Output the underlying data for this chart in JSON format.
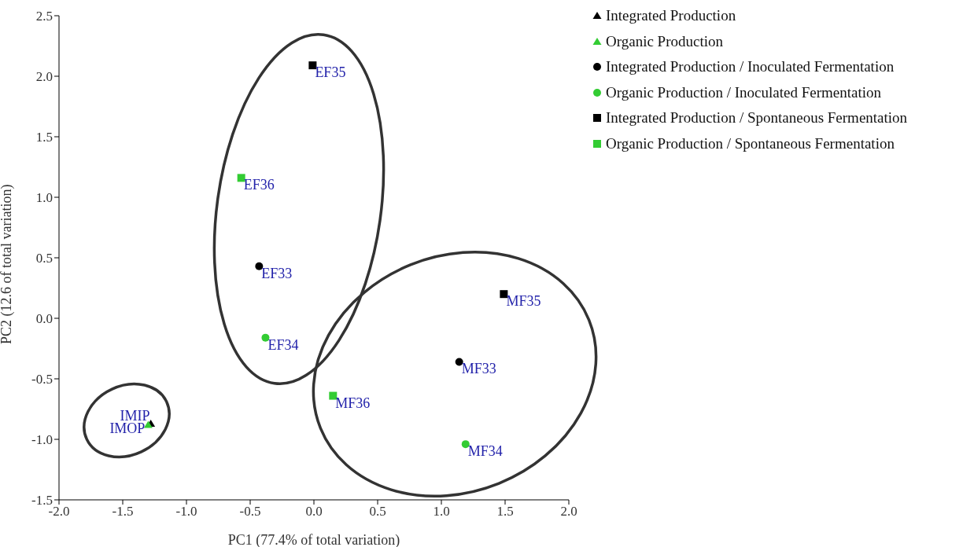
{
  "chart_data": {
    "type": "scatter",
    "xlabel": "PC1 (77.4% of total variation)",
    "ylabel": "PC2 (12.6 of total variation)",
    "xlim": [
      -2.0,
      2.0
    ],
    "xticks": [
      {
        "value": -2,
        "label": "-2.0"
      },
      {
        "value": -1.5,
        "label": "-1.5"
      },
      {
        "value": -1,
        "label": "-1.0"
      },
      {
        "value": -0.5,
        "label": "-0.5"
      },
      {
        "value": 0,
        "label": "0.0"
      },
      {
        "value": 0.5,
        "label": "0.5"
      },
      {
        "value": 1,
        "label": "1.0"
      },
      {
        "value": 1.5,
        "label": "1.5"
      },
      {
        "value": 2,
        "label": "2.0"
      }
    ],
    "ylim": [
      -1.5,
      2.5
    ],
    "yticks": [
      {
        "value": -1.5,
        "label": "-1.5"
      },
      {
        "value": -1,
        "label": "-1.0"
      },
      {
        "value": -0.5,
        "label": "-0.5"
      },
      {
        "value": 0,
        "label": "0.0"
      },
      {
        "value": 0.5,
        "label": "0.5"
      },
      {
        "value": 1,
        "label": "1.0"
      },
      {
        "value": 1.5,
        "label": "1.5"
      },
      {
        "value": 2,
        "label": "2.0"
      },
      {
        "value": 2.5,
        "label": "2.5"
      }
    ],
    "grid": false,
    "legend": "top right",
    "series": [
      {
        "name": "Integrated Production",
        "color": "#000000",
        "marker": "triangle",
        "x": [
          -1.28
        ],
        "values": [
          -0.87
        ]
      },
      {
        "name": "Organic Production",
        "color": "#33cc33",
        "marker": "triangle",
        "x": [
          -1.3
        ],
        "values": [
          -0.88
        ]
      },
      {
        "name": "Integrated Production / Inoculated Fermentation",
        "color": "#000000",
        "marker": "circle",
        "x": [
          -0.43,
          1.14
        ],
        "values": [
          0.43,
          -0.36
        ]
      },
      {
        "name": "Organic Production / Inoculated Fermentation",
        "color": "#33cc33",
        "marker": "circle",
        "x": [
          -0.38,
          1.19
        ],
        "values": [
          -0.16,
          -1.04
        ]
      },
      {
        "name": "Integrated Production / Spontaneous Fermentation",
        "color": "#000000",
        "marker": "square",
        "x": [
          -0.01,
          1.49
        ],
        "values": [
          2.09,
          0.2
        ]
      },
      {
        "name": "Organic Production / Spontaneous Fermentation",
        "color": "#33cc33",
        "marker": "square",
        "x": [
          -0.57,
          0.15
        ],
        "values": [
          1.16,
          -0.64
        ]
      }
    ],
    "annotations": [
      {
        "text": "IMIP",
        "x": -1.28,
        "y": -0.87
      },
      {
        "text": "IMOP",
        "x": -1.3,
        "y": -0.88
      },
      {
        "text": "EF35",
        "x": -0.01,
        "y": 2.09
      },
      {
        "text": "EF36",
        "x": -0.57,
        "y": 1.16
      },
      {
        "text": "EF33",
        "x": -0.43,
        "y": 0.43
      },
      {
        "text": "EF34",
        "x": -0.38,
        "y": -0.16
      },
      {
        "text": "MF35",
        "x": 1.49,
        "y": 0.2
      },
      {
        "text": "MF33",
        "x": 1.14,
        "y": -0.36
      },
      {
        "text": "MF36",
        "x": 0.15,
        "y": -0.64
      },
      {
        "text": "MF34",
        "x": 1.19,
        "y": -1.04
      }
    ]
  }
}
